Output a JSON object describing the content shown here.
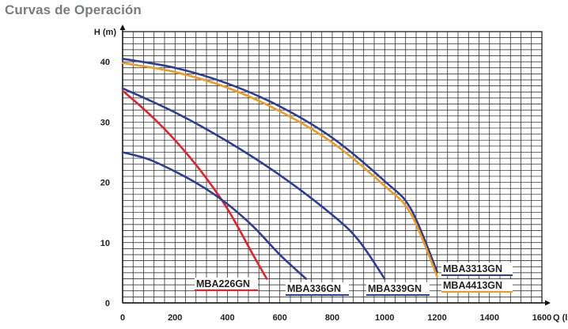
{
  "title": "Curvas de Operación",
  "chart_data": {
    "type": "line",
    "xlabel": "Q (lpm)",
    "ylabel": "H (m)",
    "xlim": [
      0,
      1600
    ],
    "ylim": [
      0,
      45
    ],
    "xticks": [
      0,
      200,
      400,
      600,
      800,
      1000,
      1200,
      1400,
      1600
    ],
    "yticks": [
      0,
      10,
      20,
      30,
      40
    ],
    "grid": true,
    "series": [
      {
        "name": "MBA226GN",
        "color": "#e8202a",
        "points": [
          [
            0,
            35.2
          ],
          [
            100,
            31.4
          ],
          [
            200,
            27.0
          ],
          [
            300,
            21.8
          ],
          [
            400,
            15.6
          ],
          [
            500,
            7.8
          ],
          [
            550,
            4.0
          ]
        ]
      },
      {
        "name": "MBA336GN",
        "color": "#2b3f96",
        "points": [
          [
            0,
            25.0
          ],
          [
            100,
            23.8
          ],
          [
            200,
            21.8
          ],
          [
            300,
            19.4
          ],
          [
            400,
            16.4
          ],
          [
            500,
            12.6
          ],
          [
            600,
            8.0
          ],
          [
            700,
            4.0
          ]
        ]
      },
      {
        "name": "MBA339GN",
        "color": "#2b3f96",
        "points": [
          [
            0,
            35.6
          ],
          [
            200,
            31.6
          ],
          [
            400,
            26.8
          ],
          [
            600,
            21.2
          ],
          [
            800,
            14.6
          ],
          [
            900,
            10.4
          ],
          [
            1000,
            4.0
          ]
        ]
      },
      {
        "name": "MBA3313GN",
        "color": "#2b3f96",
        "points": [
          [
            0,
            40.5
          ],
          [
            200,
            39.0
          ],
          [
            400,
            36.4
          ],
          [
            600,
            32.6
          ],
          [
            800,
            27.4
          ],
          [
            1000,
            20.2
          ],
          [
            1100,
            15.6
          ],
          [
            1200,
            5.2
          ]
        ]
      },
      {
        "name": "MBA4413GN",
        "color": "#f39a1e",
        "points": [
          [
            0,
            39.8
          ],
          [
            200,
            38.3
          ],
          [
            400,
            35.7
          ],
          [
            600,
            31.8
          ],
          [
            800,
            26.6
          ],
          [
            1000,
            19.4
          ],
          [
            1100,
            14.8
          ],
          [
            1200,
            4.4
          ]
        ]
      }
    ]
  }
}
